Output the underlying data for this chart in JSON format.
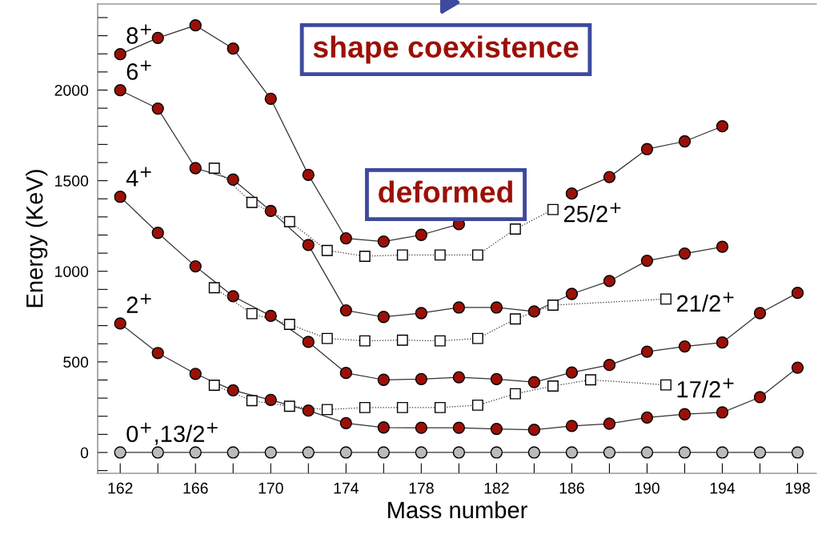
{
  "chart_data": {
    "type": "line",
    "xlabel": "Mass number",
    "ylabel": "Energy (KeV)",
    "xlim": [
      160.8,
      199
    ],
    "ylim": [
      -115,
      2475
    ],
    "xticks": [
      162,
      {
        "value": 164,
        "label": null
      },
      166,
      {
        "value": 168,
        "label": null
      },
      170,
      {
        "value": 172,
        "label": null
      },
      174,
      {
        "value": 176,
        "label": null
      },
      178,
      {
        "value": 180,
        "label": null
      },
      182,
      {
        "value": 184,
        "label": null
      },
      186,
      {
        "value": 188,
        "label": null
      },
      190,
      {
        "value": 192,
        "label": null
      },
      194,
      {
        "value": 196,
        "label": null
      },
      198
    ],
    "yticks": [
      {
        "value": -100,
        "label": null
      },
      0,
      {
        "value": 100,
        "label": null
      },
      {
        "value": 200,
        "label": null
      },
      {
        "value": 300,
        "label": null
      },
      {
        "value": 400,
        "label": null
      },
      500,
      {
        "value": 600,
        "label": null
      },
      {
        "value": 700,
        "label": null
      },
      {
        "value": 800,
        "label": null
      },
      {
        "value": 900,
        "label": null
      },
      1000,
      {
        "value": 1100,
        "label": null
      },
      {
        "value": 1200,
        "label": null
      },
      {
        "value": 1300,
        "label": null
      },
      {
        "value": 1400,
        "label": null
      },
      1500,
      {
        "value": 1600,
        "label": null
      },
      {
        "value": 1700,
        "label": null
      },
      {
        "value": 1800,
        "label": null
      },
      {
        "value": 1900,
        "label": null
      },
      2000,
      {
        "value": 2100,
        "label": null
      },
      {
        "value": 2200,
        "label": null
      },
      {
        "value": 2300,
        "label": null
      },
      {
        "value": 2400,
        "label": null
      }
    ],
    "grid": false,
    "legend": false,
    "series": [
      {
        "name": "0$^{+}$,13/2$^{+}$",
        "color": "#bbbbbb",
        "marker": "circle",
        "line_style": "solid",
        "x": [
          162,
          164,
          166,
          168,
          170,
          172,
          174,
          176,
          178,
          180,
          182,
          184,
          186,
          188,
          190,
          192,
          194,
          196,
          198
        ],
        "values": [
          0,
          0,
          0,
          0,
          0,
          0,
          0,
          0,
          0,
          0,
          0,
          0,
          0,
          0,
          0,
          0,
          0,
          0,
          0
        ]
      },
      {
        "name": "2$^{+}$",
        "color": "#9b1006",
        "marker": "circle",
        "line_style": "solid",
        "x": [
          162,
          164,
          166,
          168,
          170,
          172,
          174,
          176,
          178,
          180,
          182,
          184,
          186,
          188,
          190,
          192,
          194,
          196,
          198
        ],
        "values": [
          712,
          549,
          434,
          343,
          290,
          231,
          162,
          138,
          136,
          136,
          130,
          125,
          146,
          159,
          193,
          211,
          221,
          305,
          468
        ]
      },
      {
        "name": "4$^{+}$",
        "color": "#9b1006",
        "marker": "circle",
        "line_style": "solid",
        "x": [
          162,
          164,
          166,
          168,
          170,
          172,
          174,
          176,
          178,
          180,
          182,
          184,
          186,
          188,
          190,
          192,
          194,
          196,
          198
        ],
        "values": [
          1411,
          1212,
          1027,
          862,
          754,
          610,
          439,
          401,
          405,
          415,
          405,
          388,
          441,
          483,
          556,
          585,
          607,
          769,
          881
        ]
      },
      {
        "name": "6$^{+}$",
        "color": "#9b1006",
        "marker": "circle",
        "line_style": "solid",
        "x": [
          162,
          164,
          166,
          168,
          170,
          172,
          174,
          176,
          178,
          180,
          182,
          184,
          186,
          188,
          190,
          192,
          194
        ],
        "values": [
          1999,
          1898,
          1569,
          1506,
          1333,
          1145,
          784,
          748,
          769,
          800,
          800,
          778,
          875,
          946,
          1058,
          1098,
          1135
        ]
      },
      {
        "name": "8$^{+}$",
        "color": "#9b1006",
        "marker": "circle",
        "line_style": "solid",
        "x": [
          162,
          164,
          166,
          168,
          170,
          172,
          174,
          176,
          178,
          180,
          182,
          184,
          186,
          188,
          190,
          192,
          194
        ],
        "values": [
          2198,
          2288,
          2357,
          2229,
          1952,
          1532,
          1182,
          1164,
          1201,
          1260,
          null,
          null,
          1429,
          1520,
          1674,
          1717,
          1800
        ]
      },
      {
        "name": "17/2$^{+}$",
        "color": "#ffffff",
        "marker": "square",
        "line_style": "dotted",
        "x": [
          167,
          169,
          171,
          173,
          175,
          177,
          179,
          181,
          183,
          185,
          187,
          191
        ],
        "values": [
          371,
          286,
          255,
          237,
          248,
          248,
          248,
          261,
          324,
          367,
          401,
          373
        ]
      },
      {
        "name": "21/2$^{+}$",
        "color": "#ffffff",
        "marker": "square",
        "line_style": "dotted",
        "x": [
          167,
          169,
          171,
          173,
          175,
          177,
          179,
          181,
          183,
          185,
          191
        ],
        "values": [
          909,
          766,
          707,
          629,
          616,
          620,
          616,
          629,
          737,
          813,
          847
        ]
      },
      {
        "name": "25/2$^{+}$",
        "color": "#ffffff",
        "marker": "square",
        "line_style": "dotted",
        "x": [
          167,
          169,
          171,
          173,
          175,
          177,
          179,
          181,
          183,
          185
        ],
        "values": [
          1569,
          1380,
          1274,
          1115,
          1083,
          1090,
          1090,
          1090,
          1233,
          1341
        ]
      }
    ],
    "annotations": [
      "shape coexistence",
      "deformed"
    ]
  }
}
